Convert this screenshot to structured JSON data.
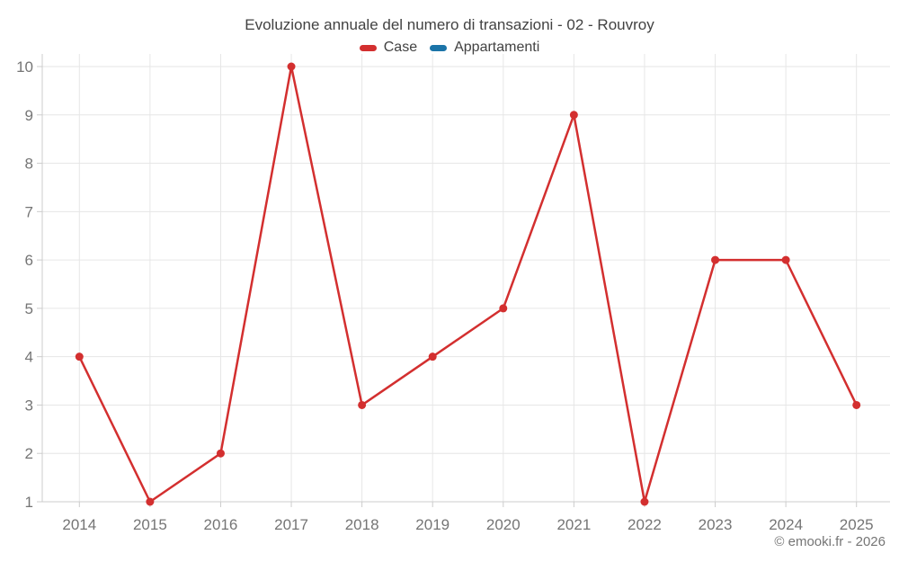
{
  "footer": "© emooki.fr - 2026",
  "colors": {
    "case_red": "#d32f2f",
    "appartamenti_blue": "#1b74a8",
    "title_text": "#424242",
    "axis_text": "#757575",
    "gridline": "#e6e6e6",
    "axis_line": "#cccccc",
    "background": "#ffffff"
  },
  "chart_data": {
    "type": "line",
    "title": "Evoluzione annuale del numero di transazioni - 02 - Rouvroy",
    "categories": [
      "2014",
      "2015",
      "2016",
      "2017",
      "2018",
      "2019",
      "2020",
      "2021",
      "2022",
      "2023",
      "2024",
      "2025"
    ],
    "series": [
      {
        "name": "Case",
        "color": "#d32f2f",
        "values": [
          4,
          1,
          2,
          10,
          3,
          4,
          5,
          9,
          1,
          6,
          6,
          3
        ]
      },
      {
        "name": "Appartamenti",
        "color": "#1b74a8",
        "values": []
      }
    ],
    "xlabel": "",
    "ylabel": "",
    "ylim": [
      1,
      10
    ],
    "yticks": [
      1,
      2,
      3,
      4,
      5,
      6,
      7,
      8,
      9,
      10
    ],
    "grid": true,
    "legend_position": "top",
    "marker": "circle"
  }
}
